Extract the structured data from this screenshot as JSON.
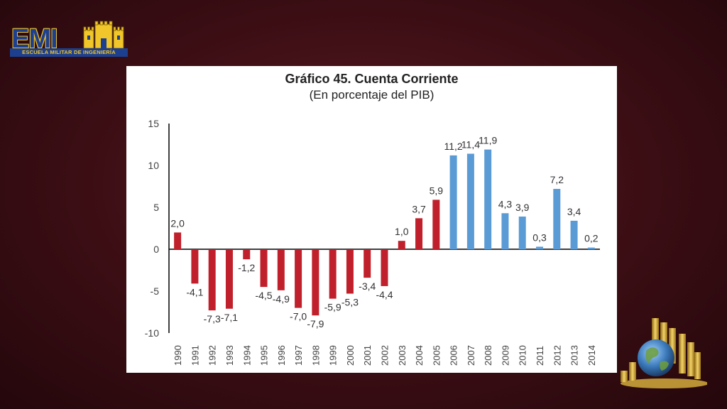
{
  "logo": {
    "text": "EMI",
    "subtitle": "ESCUELA MILITAR DE INGENIERÍA"
  },
  "chart_data": {
    "type": "bar",
    "title": "Gráfico 45. Cuenta Corriente",
    "subtitle": "(En porcentaje del PIB)",
    "xlabel": "",
    "ylabel": "",
    "ylim": [
      -10,
      15
    ],
    "yticks": [
      "15",
      "10",
      "5",
      "0",
      "-5",
      "-10"
    ],
    "grid": false,
    "categories": [
      "1990",
      "1991",
      "1992",
      "1993",
      "1994",
      "1995",
      "1996",
      "1997",
      "1998",
      "1999",
      "2000",
      "2001",
      "2002",
      "2003",
      "2004",
      "2005",
      "2006",
      "2007",
      "2008",
      "2009",
      "2010",
      "2011",
      "2012",
      "2013",
      "2014"
    ],
    "values": [
      2.0,
      -4.1,
      -7.3,
      -7.1,
      -1.2,
      -4.5,
      -4.9,
      -7.0,
      -7.9,
      -5.9,
      -5.3,
      -3.4,
      -4.4,
      1.0,
      3.7,
      5.9,
      11.2,
      11.4,
      11.9,
      4.3,
      3.9,
      0.3,
      7.2,
      3.4,
      0.2
    ],
    "data_labels": [
      "2,0",
      "-4,1",
      "-7,3",
      "-7,1",
      "-1,2",
      "-4,5",
      "-4,9",
      "-7,0",
      "-7,9",
      "-5,9",
      "-5,3",
      "-3,4",
      "-4,4",
      "1,0",
      "3,7",
      "5,9",
      "11,2",
      "11,4",
      "11,9",
      "4,3",
      "3,9",
      "0,3",
      "7,2",
      "3,4",
      "0,2"
    ],
    "colors": {
      "red": "#c0202b",
      "blue": "#5b9bd5"
    },
    "color_split_index": 16
  }
}
